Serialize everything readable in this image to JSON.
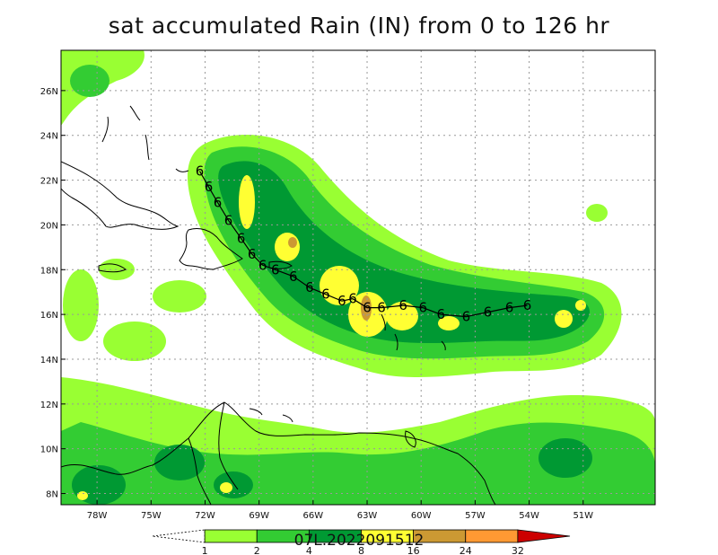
{
  "title": "sat accumulated Rain (IN) from 0 to 126 hr",
  "map": {
    "lon_range": [
      -80,
      -47
    ],
    "lat_range": [
      7.5,
      27.8
    ],
    "lon_ticks": [
      {
        "value": -78,
        "label": "78W"
      },
      {
        "value": -75,
        "label": "75W"
      },
      {
        "value": -72,
        "label": "72W"
      },
      {
        "value": -69,
        "label": "69W"
      },
      {
        "value": -66,
        "label": "66W"
      },
      {
        "value": -63,
        "label": "63W"
      },
      {
        "value": -60,
        "label": "60W"
      },
      {
        "value": -57,
        "label": "57W"
      },
      {
        "value": -54,
        "label": "54W"
      },
      {
        "value": -51,
        "label": "51W"
      }
    ],
    "lat_ticks": [
      {
        "value": 26,
        "label": "26N"
      },
      {
        "value": 24,
        "label": "24N"
      },
      {
        "value": 22,
        "label": "22N"
      },
      {
        "value": 20,
        "label": "20N"
      },
      {
        "value": 18,
        "label": "18N"
      },
      {
        "value": 16,
        "label": "16N"
      },
      {
        "value": 14,
        "label": "14N"
      },
      {
        "value": 12,
        "label": "12N"
      },
      {
        "value": 10,
        "label": "10N"
      },
      {
        "value": 8,
        "label": "8N"
      }
    ],
    "track_symbol": "6",
    "track": [
      [
        -72.3,
        22.4
      ],
      [
        -71.8,
        21.7
      ],
      [
        -71.3,
        21.0
      ],
      [
        -70.7,
        20.2
      ],
      [
        -70.0,
        19.4
      ],
      [
        -69.4,
        18.7
      ],
      [
        -68.8,
        18.2
      ],
      [
        -68.1,
        18.0
      ],
      [
        -67.1,
        17.7
      ],
      [
        -66.2,
        17.2
      ],
      [
        -65.3,
        16.9
      ],
      [
        -64.4,
        16.6
      ],
      [
        -63.8,
        16.7
      ],
      [
        -63.0,
        16.3
      ],
      [
        -62.2,
        16.3
      ],
      [
        -61.0,
        16.4
      ],
      [
        -59.9,
        16.3
      ],
      [
        -58.9,
        16.0
      ],
      [
        -57.5,
        15.9
      ],
      [
        -56.3,
        16.1
      ],
      [
        -55.1,
        16.3
      ],
      [
        -54.1,
        16.4
      ]
    ]
  },
  "colorbar": {
    "levels": [
      "1",
      "2",
      "4",
      "8",
      "16",
      "24",
      "32"
    ],
    "colors": [
      "#ffffff",
      "#99ff33",
      "#33cc33",
      "#009933",
      "#ffff33",
      "#cc9933",
      "#ff9933",
      "#cc0000"
    ],
    "storm_id": "07L.2022091512"
  }
}
